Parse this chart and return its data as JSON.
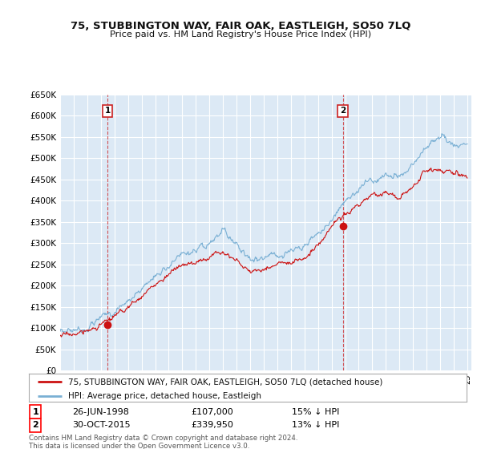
{
  "title": "75, STUBBINGTON WAY, FAIR OAK, EASTLEIGH, SO50 7LQ",
  "subtitle": "Price paid vs. HM Land Registry's House Price Index (HPI)",
  "ylim": [
    0,
    650000
  ],
  "yticks": [
    0,
    50000,
    100000,
    150000,
    200000,
    250000,
    300000,
    350000,
    400000,
    450000,
    500000,
    550000,
    600000,
    650000
  ],
  "hpi_color": "#7ab0d4",
  "price_color": "#cc1111",
  "bg_color": "#dce9f5",
  "grid_color": "#ffffff",
  "annotation1_label": "1",
  "annotation1_date": "26-JUN-1998",
  "annotation1_price": "£107,000",
  "annotation1_hpi": "15% ↓ HPI",
  "annotation1_year": 1998.5,
  "annotation1_value": 107000,
  "annotation2_label": "2",
  "annotation2_date": "30-OCT-2015",
  "annotation2_price": "£339,950",
  "annotation2_hpi": "13% ↓ HPI",
  "annotation2_year": 2015.83,
  "annotation2_value": 339950,
  "legend_label1": "75, STUBBINGTON WAY, FAIR OAK, EASTLEIGH, SO50 7LQ (detached house)",
  "legend_label2": "HPI: Average price, detached house, Eastleigh",
  "footer": "Contains HM Land Registry data © Crown copyright and database right 2024.\nThis data is licensed under the Open Government Licence v3.0.",
  "hpi_anchors_x": [
    1995,
    1996,
    1997,
    1998,
    1999,
    2000,
    2001,
    2002,
    2003,
    2004,
    2005,
    2006,
    2007,
    2008,
    2009,
    2010,
    2011,
    2012,
    2013,
    2014,
    2015,
    2016,
    2017,
    2018,
    2019,
    2020,
    2021,
    2022,
    2023,
    2024,
    2025
  ],
  "hpi_anchors_y": [
    92000,
    97000,
    103000,
    123000,
    140000,
    162000,
    192000,
    222000,
    248000,
    270000,
    276000,
    292000,
    328000,
    300000,
    262000,
    268000,
    275000,
    278000,
    292000,
    318000,
    356000,
    398000,
    428000,
    450000,
    460000,
    450000,
    478000,
    530000,
    545000,
    535000,
    530000
  ],
  "price_anchors_x": [
    1995,
    1996,
    1997,
    1998,
    1999,
    2000,
    2001,
    2002,
    2003,
    2004,
    2005,
    2006,
    2007,
    2008,
    2009,
    2010,
    2011,
    2012,
    2013,
    2014,
    2015,
    2016,
    2017,
    2018,
    2019,
    2020,
    2021,
    2022,
    2023,
    2024,
    2025
  ],
  "price_anchors_y": [
    82000,
    86000,
    92000,
    107000,
    125000,
    148000,
    175000,
    200000,
    228000,
    248000,
    252000,
    268000,
    285000,
    258000,
    232000,
    240000,
    250000,
    252000,
    265000,
    290000,
    339950,
    368000,
    390000,
    410000,
    418000,
    405000,
    430000,
    470000,
    475000,
    462000,
    456000
  ]
}
